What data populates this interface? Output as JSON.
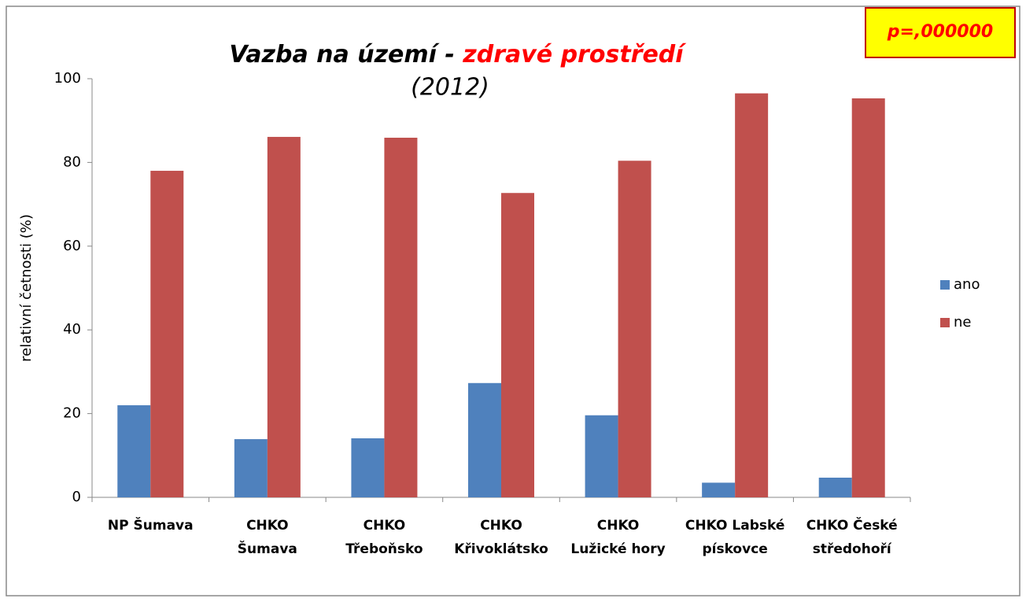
{
  "chart_data": {
    "type": "bar",
    "title": {
      "text": "Vazba na území - ",
      "highlight": "zdravé prostředí",
      "highlight_color": "#ff0000"
    },
    "subtitle": "(2012)",
    "annotation": "p=,000000",
    "y_label": "relativní četnosti (%)",
    "categories": [
      [
        "NP Šumava"
      ],
      [
        "CHKO",
        "Šumava"
      ],
      [
        "CHKO",
        "Třeboňsko"
      ],
      [
        "CHKO",
        "Křivoklátsko"
      ],
      [
        "CHKO",
        "Lužické hory"
      ],
      [
        "CHKO Labské",
        "pískovce"
      ],
      [
        "CHKO České",
        "středohoří"
      ]
    ],
    "series": [
      {
        "name": "ano",
        "color": "#4f81bd",
        "values": [
          22,
          13.9,
          14.1,
          27.3,
          19.6,
          3.5,
          4.7
        ]
      },
      {
        "name": "ne",
        "color": "#c0504d",
        "values": [
          78,
          86.1,
          85.9,
          72.7,
          80.4,
          96.5,
          95.3
        ]
      }
    ],
    "ylim": [
      0,
      100
    ],
    "yticks": [
      0,
      20,
      40,
      60,
      80,
      100
    ],
    "grid": false,
    "legend": "right"
  }
}
